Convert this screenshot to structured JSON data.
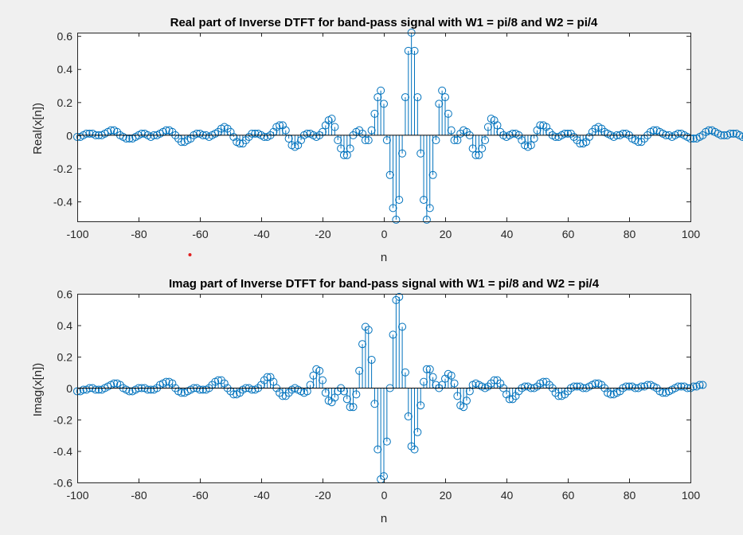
{
  "chart_data": [
    {
      "type": "stem",
      "title": "Real part of Inverse DTFT for band-pass signal with W1 = pi/8 and W2 = pi/4",
      "xlabel": "n",
      "ylabel": "Real(x[n])",
      "xlim": [
        -100,
        100
      ],
      "ylim": [
        -0.52,
        0.62
      ],
      "xticks": [
        -100,
        -80,
        -60,
        -40,
        -20,
        0,
        20,
        40,
        60,
        80,
        100
      ],
      "xtick_labels": [
        "-100",
        "-80",
        "-60",
        "-40",
        "-20",
        "0",
        "20",
        "40",
        "60",
        "80",
        "100"
      ],
      "yticks": [
        -0.4,
        -0.2,
        0,
        0.2,
        0.4,
        0.6
      ],
      "ytick_labels": [
        "-0.4",
        "-0.2",
        "0",
        "0.2",
        "0.4",
        "0.6"
      ],
      "grid": false,
      "series": [
        {
          "x_range": [
            -100,
            100
          ],
          "y": [
            -0.01,
            -0.01,
            0.0,
            0.01,
            0.01,
            0.01,
            0.0,
            0.0,
            0.0,
            0.01,
            0.02,
            0.03,
            0.03,
            0.02,
            0.0,
            -0.01,
            -0.02,
            -0.02,
            -0.02,
            -0.01,
            0.0,
            0.01,
            0.01,
            0.0,
            -0.01,
            0.0,
            0.0,
            0.01,
            0.02,
            0.03,
            0.03,
            0.02,
            0.0,
            -0.02,
            -0.04,
            -0.04,
            -0.03,
            -0.02,
            0.0,
            0.01,
            0.01,
            0.0,
            0.0,
            -0.01,
            0.0,
            0.01,
            0.02,
            0.04,
            0.05,
            0.04,
            0.02,
            -0.01,
            -0.04,
            -0.05,
            -0.05,
            -0.03,
            -0.01,
            0.01,
            0.01,
            0.01,
            0.0,
            -0.01,
            -0.01,
            0.0,
            0.02,
            0.05,
            0.06,
            0.06,
            0.03,
            -0.02,
            -0.06,
            -0.07,
            -0.06,
            -0.03,
            0.0,
            0.01,
            0.01,
            0.0,
            -0.01,
            0.0,
            0.02,
            0.06,
            0.09,
            0.1,
            0.05,
            -0.03,
            -0.08,
            -0.12,
            -0.12,
            -0.08,
            0.0,
            0.02,
            0.03,
            0.01,
            -0.03,
            -0.03,
            0.03,
            0.13,
            0.23,
            0.27,
            0.19,
            -0.03,
            -0.24,
            -0.44,
            -0.51,
            -0.39,
            -0.11,
            0.23,
            0.51,
            0.62,
            0.51,
            0.23,
            -0.11,
            -0.39,
            -0.51,
            -0.44,
            -0.24,
            -0.03,
            0.19,
            0.27,
            0.23,
            0.13,
            0.03,
            -0.03,
            -0.03,
            0.01,
            0.03,
            0.02,
            0.0,
            -0.08,
            -0.12,
            -0.12,
            -0.08,
            -0.03,
            0.05,
            0.1,
            0.09,
            0.06,
            0.02,
            0.0,
            -0.01,
            0.0,
            0.01,
            0.01,
            0.0,
            -0.03,
            -0.06,
            -0.07,
            -0.06,
            -0.02,
            0.03,
            0.06,
            0.06,
            0.05,
            0.02,
            0.0,
            -0.01,
            -0.01,
            0.0,
            0.01,
            0.01,
            0.01,
            -0.01,
            -0.03,
            -0.05,
            -0.05,
            -0.04,
            -0.01,
            0.02,
            0.04,
            0.05,
            0.04,
            0.02,
            0.01,
            0.0,
            -0.01,
            0.0,
            0.0,
            0.01,
            0.01,
            0.0,
            -0.02,
            -0.03,
            -0.04,
            -0.04,
            -0.02,
            0.0,
            0.02,
            0.03,
            0.03,
            0.02,
            0.01,
            0.0,
            0.0,
            -0.01,
            0.0,
            0.01,
            0.01,
            0.0,
            -0.01,
            -0.02,
            -0.02,
            -0.02,
            -0.01,
            0.0,
            0.02,
            0.03,
            0.03,
            0.02,
            0.01,
            0.0,
            0.0,
            0.0,
            0.01,
            0.01,
            0.01,
            0.0,
            -0.01,
            -0.01
          ],
          "color": "#0072bd"
        }
      ]
    },
    {
      "type": "stem",
      "title": "Imag part of Inverse DTFT for band-pass signal with W1 = pi/8 and W2 = pi/4",
      "xlabel": "n",
      "ylabel": "Imag(x[n])",
      "xlim": [
        -100,
        100
      ],
      "ylim": [
        -0.6,
        0.6
      ],
      "xticks": [
        -100,
        -80,
        -60,
        -40,
        -20,
        0,
        20,
        40,
        60,
        80,
        100
      ],
      "xtick_labels": [
        "-100",
        "-80",
        "-60",
        "-40",
        "-20",
        "0",
        "20",
        "40",
        "60",
        "80",
        "100"
      ],
      "yticks": [
        -0.6,
        -0.4,
        -0.2,
        0,
        0.2,
        0.4,
        0.6
      ],
      "ytick_labels": [
        "-0.6",
        "-0.4",
        "-0.2",
        "0",
        "0.2",
        "0.4",
        "0.6"
      ],
      "grid": false,
      "series": [
        {
          "x_range": [
            -100,
            100
          ],
          "y": [
            -0.02,
            -0.02,
            -0.01,
            -0.01,
            0.0,
            0.0,
            -0.01,
            -0.01,
            -0.01,
            0.0,
            0.01,
            0.02,
            0.03,
            0.03,
            0.02,
            0.0,
            -0.01,
            -0.02,
            -0.02,
            -0.01,
            0.0,
            0.0,
            0.0,
            -0.01,
            -0.01,
            -0.01,
            0.0,
            0.02,
            0.03,
            0.04,
            0.04,
            0.03,
            0.0,
            -0.02,
            -0.03,
            -0.03,
            -0.02,
            -0.01,
            0.0,
            0.0,
            -0.01,
            -0.01,
            -0.01,
            0.0,
            0.02,
            0.04,
            0.05,
            0.05,
            0.03,
            0.0,
            -0.02,
            -0.04,
            -0.04,
            -0.03,
            -0.01,
            0.0,
            0.0,
            -0.01,
            -0.01,
            0.0,
            0.02,
            0.05,
            0.07,
            0.07,
            0.04,
            0.0,
            -0.03,
            -0.05,
            -0.05,
            -0.03,
            -0.01,
            0.0,
            -0.01,
            -0.02,
            -0.03,
            -0.02,
            0.02,
            0.08,
            0.12,
            0.11,
            0.05,
            -0.03,
            -0.08,
            -0.09,
            -0.06,
            -0.02,
            0.0,
            -0.02,
            -0.07,
            -0.12,
            -0.12,
            -0.04,
            0.11,
            0.28,
            0.39,
            0.37,
            0.18,
            -0.1,
            -0.39,
            -0.58,
            -0.56,
            -0.34,
            0.0,
            0.34,
            0.56,
            0.58,
            0.39,
            0.1,
            -0.18,
            -0.37,
            -0.39,
            -0.28,
            -0.11,
            0.04,
            0.12,
            0.12,
            0.07,
            0.02,
            0.0,
            0.02,
            0.06,
            0.09,
            0.08,
            0.03,
            -0.05,
            -0.11,
            -0.12,
            -0.08,
            -0.02,
            0.02,
            0.03,
            0.02,
            0.01,
            0.0,
            0.01,
            0.03,
            0.05,
            0.05,
            0.03,
            0.0,
            -0.04,
            -0.07,
            -0.07,
            -0.05,
            -0.02,
            0.0,
            0.01,
            0.01,
            0.0,
            0.0,
            0.01,
            0.03,
            0.04,
            0.04,
            0.02,
            0.0,
            -0.03,
            -0.05,
            -0.05,
            -0.04,
            -0.02,
            0.0,
            0.01,
            0.01,
            0.01,
            0.0,
            0.0,
            0.01,
            0.02,
            0.03,
            0.03,
            0.02,
            0.0,
            -0.03,
            -0.04,
            -0.04,
            -0.03,
            -0.02,
            0.0,
            0.01,
            0.01,
            0.01,
            0.0,
            0.0,
            0.01,
            0.01,
            0.02,
            0.02,
            0.01,
            0.0,
            -0.02,
            -0.03,
            -0.03,
            -0.02,
            -0.01,
            0.0,
            0.01,
            0.01,
            0.01,
            0.0,
            0.0,
            0.01,
            0.01,
            0.02,
            0.02
          ],
          "color": "#0072bd"
        }
      ]
    }
  ]
}
